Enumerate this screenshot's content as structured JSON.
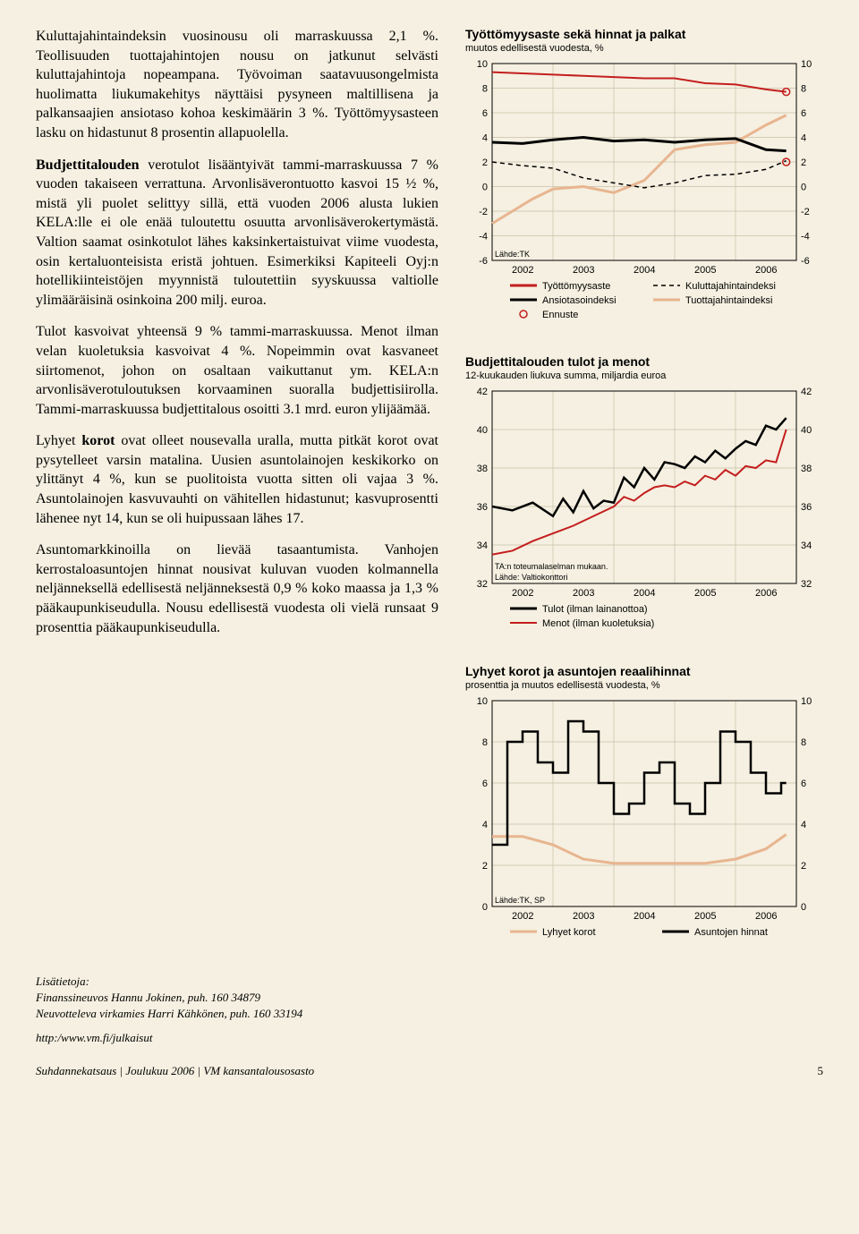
{
  "text": {
    "p1": "Kuluttajahintaindeksin vuosinousu oli marraskuussa 2,1 %. Teollisuuden tuottajahintojen nousu on jatkunut selvästi kuluttajahintoja nopeampana. Työvoiman saatavuusongelmista huolimatta liukumakehitys näyttäisi pysyneen maltillisena ja palkansaajien ansiotaso kohoa keskimäärin 3 %. Työttömyysasteen lasku on hidastunut 8 prosentin allapuolella.",
    "p2a": "Budjettitalouden",
    "p2b": " verotulot lisääntyivät tammi-marraskuussa 7 % vuoden takaiseen verrattuna. Arvonlisäverontuotto kasvoi 15 ½ %, mistä yli puolet selittyy sillä, että vuoden 2006 alusta lukien KELA:lle ei ole enää tuloutettu osuutta arvonlisäverokertymästä. Valtion saamat osinkotulot lähes kaksinkertaistuivat viime vuodesta, osin kertaluonteisista eristä johtuen. Esimerkiksi Kapiteeli Oyj:n hotellikiinteistöjen myynnistä tuloutettiin syyskuussa valtiolle ylimääräisinä osinkoina 200 milj. euroa.",
    "p3": "Tulot kasvoivat yhteensä 9 % tammi-marraskuussa. Menot ilman velan kuoletuksia kasvoivat 4 %. Nopeimmin ovat kasvaneet siirtomenot, johon on osaltaan vaikuttanut ym. KELA:n arvonlisäverotuloutuksen korvaaminen suoralla budjettisiirolla. Tammi-marraskuussa budjettitalous osoitti 3.1 mrd. euron ylijäämää.",
    "p4a": "Lyhyet ",
    "p4b": "korot",
    "p4c": " ovat olleet nousevalla uralla, mutta pitkät korot ovat pysytelleet varsin matalina. Uusien asuntolainojen keskikorko on ylittänyt 4 %, kun se puolitoista vuotta sitten oli vajaa 3 %. Asuntolainojen kasvuvauhti on vähitellen hidastunut; kasvuprosentti lähenee nyt 14, kun se oli huipussaan lähes 17.",
    "p5": "Asuntomarkkinoilla on lievää tasaantumista. Vanhojen kerrostaloasuntojen hinnat nousivat kuluvan vuoden kolmannella neljänneksellä edellisestä neljänneksestä 0,9 % koko maassa ja 1,3 % pääkaupunkiseudulla. Nousu edellisestä vuodesta oli vielä runsaat 9 prosenttia pääkaupunkiseudulla."
  },
  "credits": {
    "lisatietoja": "Lisätietoja:",
    "name1": "Finanssineuvos Hannu Jokinen, puh. 160 34879",
    "name2": "Neuvotteleva virkamies Harri Kähkönen, puh. 160 33194",
    "url": "http:/www.vm.fi/julkaisut"
  },
  "footer": {
    "left": "Suhdannekatsaus | Joulukuu 2006 | VM kansantalousosasto",
    "page": "5"
  },
  "chart1": {
    "title": "Työttömyysaste sekä hinnat ja palkat",
    "subtitle": "muutos edellisestä vuodesta, %",
    "ylim": [
      -6,
      10
    ],
    "yticks": [
      -6,
      -4,
      -2,
      0,
      2,
      4,
      6,
      8,
      10
    ],
    "xcategories": [
      "2002",
      "2003",
      "2004",
      "2005",
      "2006"
    ],
    "background": "#f5f0e1",
    "grid_color": "#b8b09a",
    "colors": {
      "tyottomyys": "#c41e1e",
      "ansiotaso": "#000000",
      "kuluttaja": "#000000",
      "tuottaja": "#e8b590",
      "ennuste": "#c41e1e"
    },
    "source": "Lähde:TK",
    "legend": {
      "tyottomyys": "Työttömyysaste",
      "ansiotaso": "Ansiotasoindeksi",
      "ennuste": "Ennuste",
      "kuluttaja": "Kuluttajahintaindeksi",
      "tuottaja": "Tuottajahintaindeksi"
    },
    "series": {
      "tyottomyys": [
        [
          0,
          9.3
        ],
        [
          6,
          9.2
        ],
        [
          12,
          9.1
        ],
        [
          18,
          9.0
        ],
        [
          24,
          8.9
        ],
        [
          30,
          8.8
        ],
        [
          36,
          8.8
        ],
        [
          42,
          8.4
        ],
        [
          48,
          8.3
        ],
        [
          54,
          7.9
        ],
        [
          58,
          7.7
        ]
      ],
      "ansiotaso": [
        [
          0,
          3.6
        ],
        [
          6,
          3.5
        ],
        [
          12,
          3.8
        ],
        [
          18,
          4.0
        ],
        [
          24,
          3.7
        ],
        [
          30,
          3.8
        ],
        [
          36,
          3.6
        ],
        [
          42,
          3.8
        ],
        [
          48,
          3.9
        ],
        [
          54,
          3.0
        ],
        [
          58,
          2.9
        ]
      ],
      "kuluttaja": [
        [
          0,
          2.0
        ],
        [
          6,
          1.7
        ],
        [
          12,
          1.5
        ],
        [
          18,
          0.7
        ],
        [
          24,
          0.3
        ],
        [
          30,
          -0.1
        ],
        [
          36,
          0.3
        ],
        [
          42,
          0.9
        ],
        [
          48,
          1.0
        ],
        [
          54,
          1.4
        ],
        [
          58,
          2.1
        ]
      ],
      "tuottaja": [
        [
          0,
          -3.0
        ],
        [
          4,
          -2.0
        ],
        [
          8,
          -1.0
        ],
        [
          12,
          -0.2
        ],
        [
          18,
          0.0
        ],
        [
          24,
          -0.5
        ],
        [
          30,
          0.5
        ],
        [
          36,
          3.0
        ],
        [
          42,
          3.4
        ],
        [
          48,
          3.6
        ],
        [
          54,
          5.0
        ],
        [
          58,
          5.8
        ]
      ]
    },
    "ennuste_points": [
      [
        58,
        7.7
      ],
      [
        58,
        2.0
      ]
    ]
  },
  "chart2": {
    "title": "Budjettitalouden tulot ja menot",
    "subtitle": "12-kuukauden liukuva summa, miljardia euroa",
    "ylim": [
      32,
      42
    ],
    "yticks": [
      32,
      34,
      36,
      38,
      40,
      42
    ],
    "xcategories": [
      "2002",
      "2003",
      "2004",
      "2005",
      "2006"
    ],
    "note": "TA:n toteumalaselman mukaan.",
    "source": "Lähde: Valtiokonttori",
    "legend": {
      "tulot": "Tulot (ilman lainanottoa)",
      "menot": "Menot (ilman kuoletuksia)"
    },
    "colors": {
      "tulot": "#000000",
      "menot": "#c41e1e"
    },
    "series": {
      "tulot": [
        [
          0,
          36.0
        ],
        [
          4,
          35.8
        ],
        [
          8,
          36.2
        ],
        [
          12,
          35.5
        ],
        [
          14,
          36.4
        ],
        [
          16,
          35.7
        ],
        [
          18,
          36.8
        ],
        [
          20,
          35.9
        ],
        [
          22,
          36.3
        ],
        [
          24,
          36.2
        ],
        [
          26,
          37.5
        ],
        [
          28,
          37.0
        ],
        [
          30,
          38.0
        ],
        [
          32,
          37.4
        ],
        [
          34,
          38.3
        ],
        [
          36,
          38.2
        ],
        [
          38,
          38.0
        ],
        [
          40,
          38.6
        ],
        [
          42,
          38.3
        ],
        [
          44,
          38.9
        ],
        [
          46,
          38.5
        ],
        [
          48,
          39.0
        ],
        [
          50,
          39.4
        ],
        [
          52,
          39.2
        ],
        [
          54,
          40.2
        ],
        [
          56,
          40.0
        ],
        [
          58,
          40.6
        ]
      ],
      "menot": [
        [
          0,
          33.5
        ],
        [
          4,
          33.7
        ],
        [
          8,
          34.2
        ],
        [
          12,
          34.6
        ],
        [
          16,
          35.0
        ],
        [
          20,
          35.5
        ],
        [
          24,
          36.0
        ],
        [
          26,
          36.5
        ],
        [
          28,
          36.3
        ],
        [
          30,
          36.7
        ],
        [
          32,
          37.0
        ],
        [
          34,
          37.1
        ],
        [
          36,
          37.0
        ],
        [
          38,
          37.3
        ],
        [
          40,
          37.1
        ],
        [
          42,
          37.6
        ],
        [
          44,
          37.4
        ],
        [
          46,
          37.9
        ],
        [
          48,
          37.6
        ],
        [
          50,
          38.1
        ],
        [
          52,
          38.0
        ],
        [
          54,
          38.4
        ],
        [
          56,
          38.3
        ],
        [
          58,
          40.0
        ]
      ]
    }
  },
  "chart3": {
    "title": "Lyhyet korot ja asuntojen reaalihinnat",
    "subtitle": "prosenttia ja muutos edellisestä vuodesta, %",
    "ylim": [
      0,
      10
    ],
    "yticks": [
      0,
      2,
      4,
      6,
      8,
      10
    ],
    "xcategories": [
      "2002",
      "2003",
      "2004",
      "2005",
      "2006"
    ],
    "source": "Lähde:TK, SP",
    "legend": {
      "korot": "Lyhyet korot",
      "asunnot": "Asuntojen hinnat"
    },
    "colors": {
      "korot": "#e8b590",
      "asunnot": "#000000"
    },
    "series": {
      "korot": [
        [
          0,
          3.4
        ],
        [
          6,
          3.4
        ],
        [
          12,
          3.0
        ],
        [
          18,
          2.3
        ],
        [
          24,
          2.1
        ],
        [
          30,
          2.1
        ],
        [
          36,
          2.1
        ],
        [
          42,
          2.1
        ],
        [
          48,
          2.3
        ],
        [
          54,
          2.8
        ],
        [
          58,
          3.5
        ]
      ],
      "asunnot": [
        [
          0,
          3.0
        ],
        [
          3,
          3.0
        ],
        [
          3,
          8.0
        ],
        [
          6,
          8.0
        ],
        [
          6,
          8.5
        ],
        [
          9,
          8.5
        ],
        [
          9,
          7.0
        ],
        [
          12,
          7.0
        ],
        [
          12,
          6.5
        ],
        [
          15,
          6.5
        ],
        [
          15,
          9.0
        ],
        [
          18,
          9.0
        ],
        [
          18,
          8.5
        ],
        [
          21,
          8.5
        ],
        [
          21,
          6.0
        ],
        [
          24,
          6.0
        ],
        [
          24,
          4.5
        ],
        [
          27,
          4.5
        ],
        [
          27,
          5.0
        ],
        [
          30,
          5.0
        ],
        [
          30,
          6.5
        ],
        [
          33,
          6.5
        ],
        [
          33,
          7.0
        ],
        [
          36,
          7.0
        ],
        [
          36,
          5.0
        ],
        [
          39,
          5.0
        ],
        [
          39,
          4.5
        ],
        [
          42,
          4.5
        ],
        [
          42,
          6.0
        ],
        [
          45,
          6.0
        ],
        [
          45,
          8.5
        ],
        [
          48,
          8.5
        ],
        [
          48,
          8.0
        ],
        [
          51,
          8.0
        ],
        [
          51,
          6.5
        ],
        [
          54,
          6.5
        ],
        [
          54,
          5.5
        ],
        [
          57,
          5.5
        ],
        [
          57,
          6.0
        ],
        [
          58,
          6.0
        ]
      ]
    }
  }
}
